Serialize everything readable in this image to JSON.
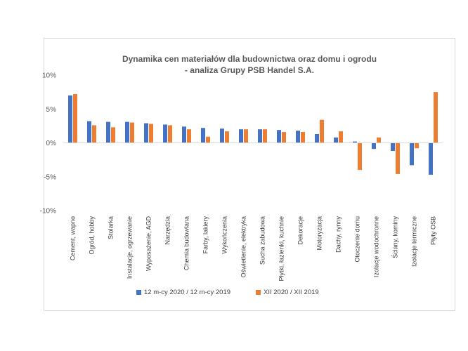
{
  "chart_data": {
    "type": "bar",
    "title_line1": "Dynamika cen materiałów dla budownictwa oraz domu i ogrodu",
    "title_line2": "- analiza Grupy PSB Handel S.A.",
    "xlabel": "",
    "ylabel": "",
    "ylim": [
      -10,
      10
    ],
    "yticks": [
      10,
      5,
      0,
      -5,
      -10
    ],
    "ytick_labels": [
      "10%",
      "5%",
      "0%",
      "-5%",
      "-10%"
    ],
    "grid": false,
    "legend_position": "bottom",
    "categories": [
      "Cement, wapno",
      "Ogród, hobby",
      "Stolarka",
      "Instalacje, ogrzewanie",
      "Wyposażenie, AGD",
      "Narzędzia",
      "Chemia budowlana",
      "Farby, lakiery",
      "Wykończenia",
      "Oświetlenie, elektryka",
      "Sucha zabudowa",
      "Płytki, łazienki, kuchnie",
      "Dekoracje",
      "Motoryzacja",
      "Dachy, rynny",
      "Otoczenie domu",
      "Izolacje wodochronne",
      "Ściany, kominy",
      "Izolacje termiczne",
      "Płyty OSB"
    ],
    "series": [
      {
        "name": "12 m-cy 2020 / 12 m-cy 2019",
        "color": "#4472c4",
        "values": [
          7.0,
          3.2,
          3.1,
          3.1,
          2.9,
          2.7,
          2.4,
          2.2,
          2.1,
          2.0,
          2.0,
          1.9,
          1.8,
          1.3,
          0.8,
          0.2,
          -0.9,
          -1.2,
          -3.3,
          -4.7
        ]
      },
      {
        "name": "XII 2020 / XII 2019",
        "color": "#ed7d31",
        "values": [
          7.2,
          2.6,
          2.3,
          3.0,
          2.8,
          2.6,
          2.0,
          0.9,
          1.7,
          2.0,
          2.0,
          1.6,
          1.6,
          3.4,
          1.7,
          -4.0,
          0.8,
          -4.6,
          -0.8,
          7.5
        ]
      }
    ]
  }
}
